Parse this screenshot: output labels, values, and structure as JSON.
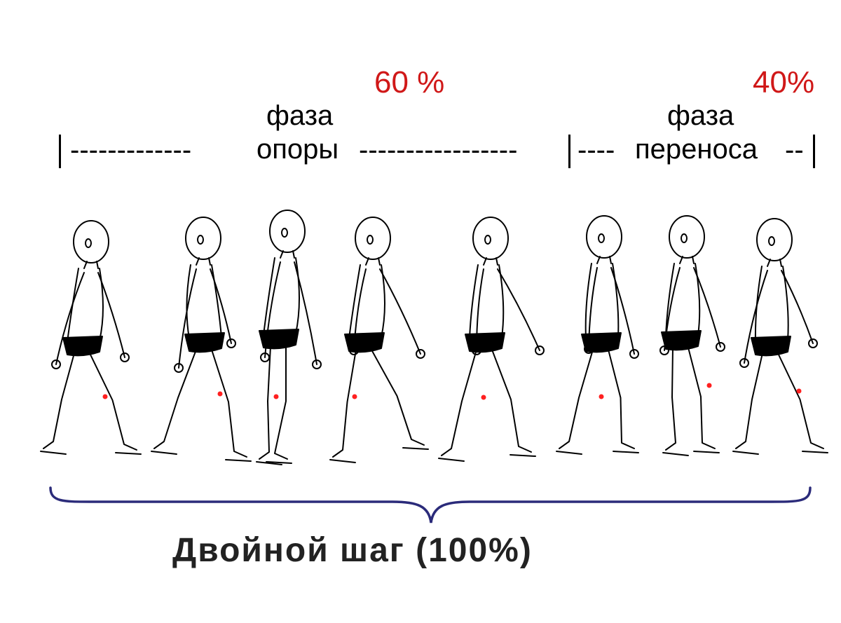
{
  "support_phase": {
    "percent": "60 %",
    "word1": "фаза",
    "word2": "опоры",
    "dashes_left": "-------------",
    "dashes_right": "-----------------"
  },
  "swing_phase": {
    "percent": "40%",
    "word1": "фаза",
    "word2": "переноса",
    "dashes_left": "----",
    "dashes_right": "--"
  },
  "double_step_label": "Двойной шаг (100%)",
  "colors": {
    "percent_text": "#d01818",
    "brace": "#2b2b7a",
    "joint_marker": "#ff2020"
  },
  "figures_count_note": "",
  "icons": [
    "walking-child-figure",
    "knee-joint-marker",
    "curly-brace"
  ]
}
